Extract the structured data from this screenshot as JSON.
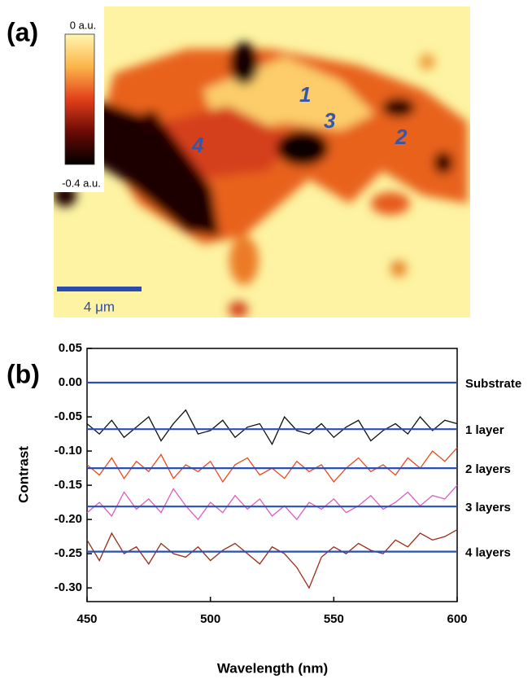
{
  "panel_a": {
    "label": "(a)",
    "colorbar": {
      "top": "0 a.u.",
      "bottom": "-0.4 a.u."
    },
    "regions": [
      "1",
      "2",
      "3",
      "4"
    ],
    "scale_bar": "4 μm"
  },
  "panel_b": {
    "label": "(b)"
  },
  "chart_data": {
    "type": "line",
    "x_label": "Wavelength (nm)",
    "y_label": "Contrast",
    "xlim": [
      450,
      600
    ],
    "xticks": [
      450,
      500,
      550,
      600
    ],
    "ylim": [
      -0.32,
      0.05
    ],
    "yticks": [
      0.05,
      {
        "value": 0,
        "label": "0.00"
      },
      -0.05,
      {
        "value": -0.1,
        "label": "-0.10"
      },
      -0.15,
      {
        "value": -0.2,
        "label": "-0.20"
      },
      -0.25,
      {
        "value": -0.3,
        "label": "-0.30"
      }
    ],
    "x": [
      450,
      455,
      460,
      465,
      470,
      475,
      480,
      485,
      490,
      495,
      500,
      505,
      510,
      515,
      520,
      525,
      530,
      535,
      540,
      545,
      550,
      555,
      560,
      565,
      570,
      575,
      580,
      585,
      590,
      595,
      600
    ],
    "series": [
      {
        "color": "#111111",
        "values": [
          -0.06,
          -0.075,
          -0.055,
          -0.08,
          -0.065,
          -0.05,
          -0.085,
          -0.06,
          -0.04,
          -0.075,
          -0.07,
          -0.055,
          -0.08,
          -0.065,
          -0.06,
          -0.09,
          -0.05,
          -0.07,
          -0.075,
          -0.06,
          -0.08,
          -0.065,
          -0.055,
          -0.085,
          -0.07,
          -0.06,
          -0.075,
          -0.05,
          -0.07,
          -0.055,
          -0.06
        ]
      },
      {
        "color": "#ec4a1e",
        "values": [
          -0.12,
          -0.135,
          -0.11,
          -0.14,
          -0.115,
          -0.13,
          -0.105,
          -0.14,
          -0.12,
          -0.13,
          -0.115,
          -0.145,
          -0.12,
          -0.11,
          -0.135,
          -0.125,
          -0.14,
          -0.115,
          -0.13,
          -0.12,
          -0.145,
          -0.125,
          -0.11,
          -0.13,
          -0.12,
          -0.135,
          -0.11,
          -0.125,
          -0.1,
          -0.115,
          -0.095
        ]
      },
      {
        "color": "#dc5cc4",
        "values": [
          -0.19,
          -0.175,
          -0.195,
          -0.16,
          -0.185,
          -0.17,
          -0.19,
          -0.155,
          -0.18,
          -0.2,
          -0.175,
          -0.19,
          -0.165,
          -0.185,
          -0.17,
          -0.195,
          -0.18,
          -0.2,
          -0.175,
          -0.185,
          -0.17,
          -0.19,
          -0.18,
          -0.165,
          -0.185,
          -0.175,
          -0.16,
          -0.18,
          -0.165,
          -0.17,
          -0.15
        ]
      },
      {
        "color": "#9e2a14",
        "values": [
          -0.23,
          -0.26,
          -0.22,
          -0.25,
          -0.24,
          -0.265,
          -0.235,
          -0.25,
          -0.255,
          -0.24,
          -0.26,
          -0.245,
          -0.235,
          -0.25,
          -0.265,
          -0.24,
          -0.25,
          -0.27,
          -0.3,
          -0.255,
          -0.24,
          -0.25,
          -0.235,
          -0.245,
          -0.25,
          -0.23,
          -0.24,
          -0.22,
          -0.23,
          -0.225,
          -0.215
        ]
      }
    ],
    "fit_lines": {
      "color": "#2850b4",
      "values": [
        0,
        -0.068,
        -0.125,
        -0.181,
        -0.247
      ],
      "labels": [
        "Substrate",
        "1 layer",
        "2 layers",
        "3 layers",
        "4 layers"
      ]
    }
  }
}
